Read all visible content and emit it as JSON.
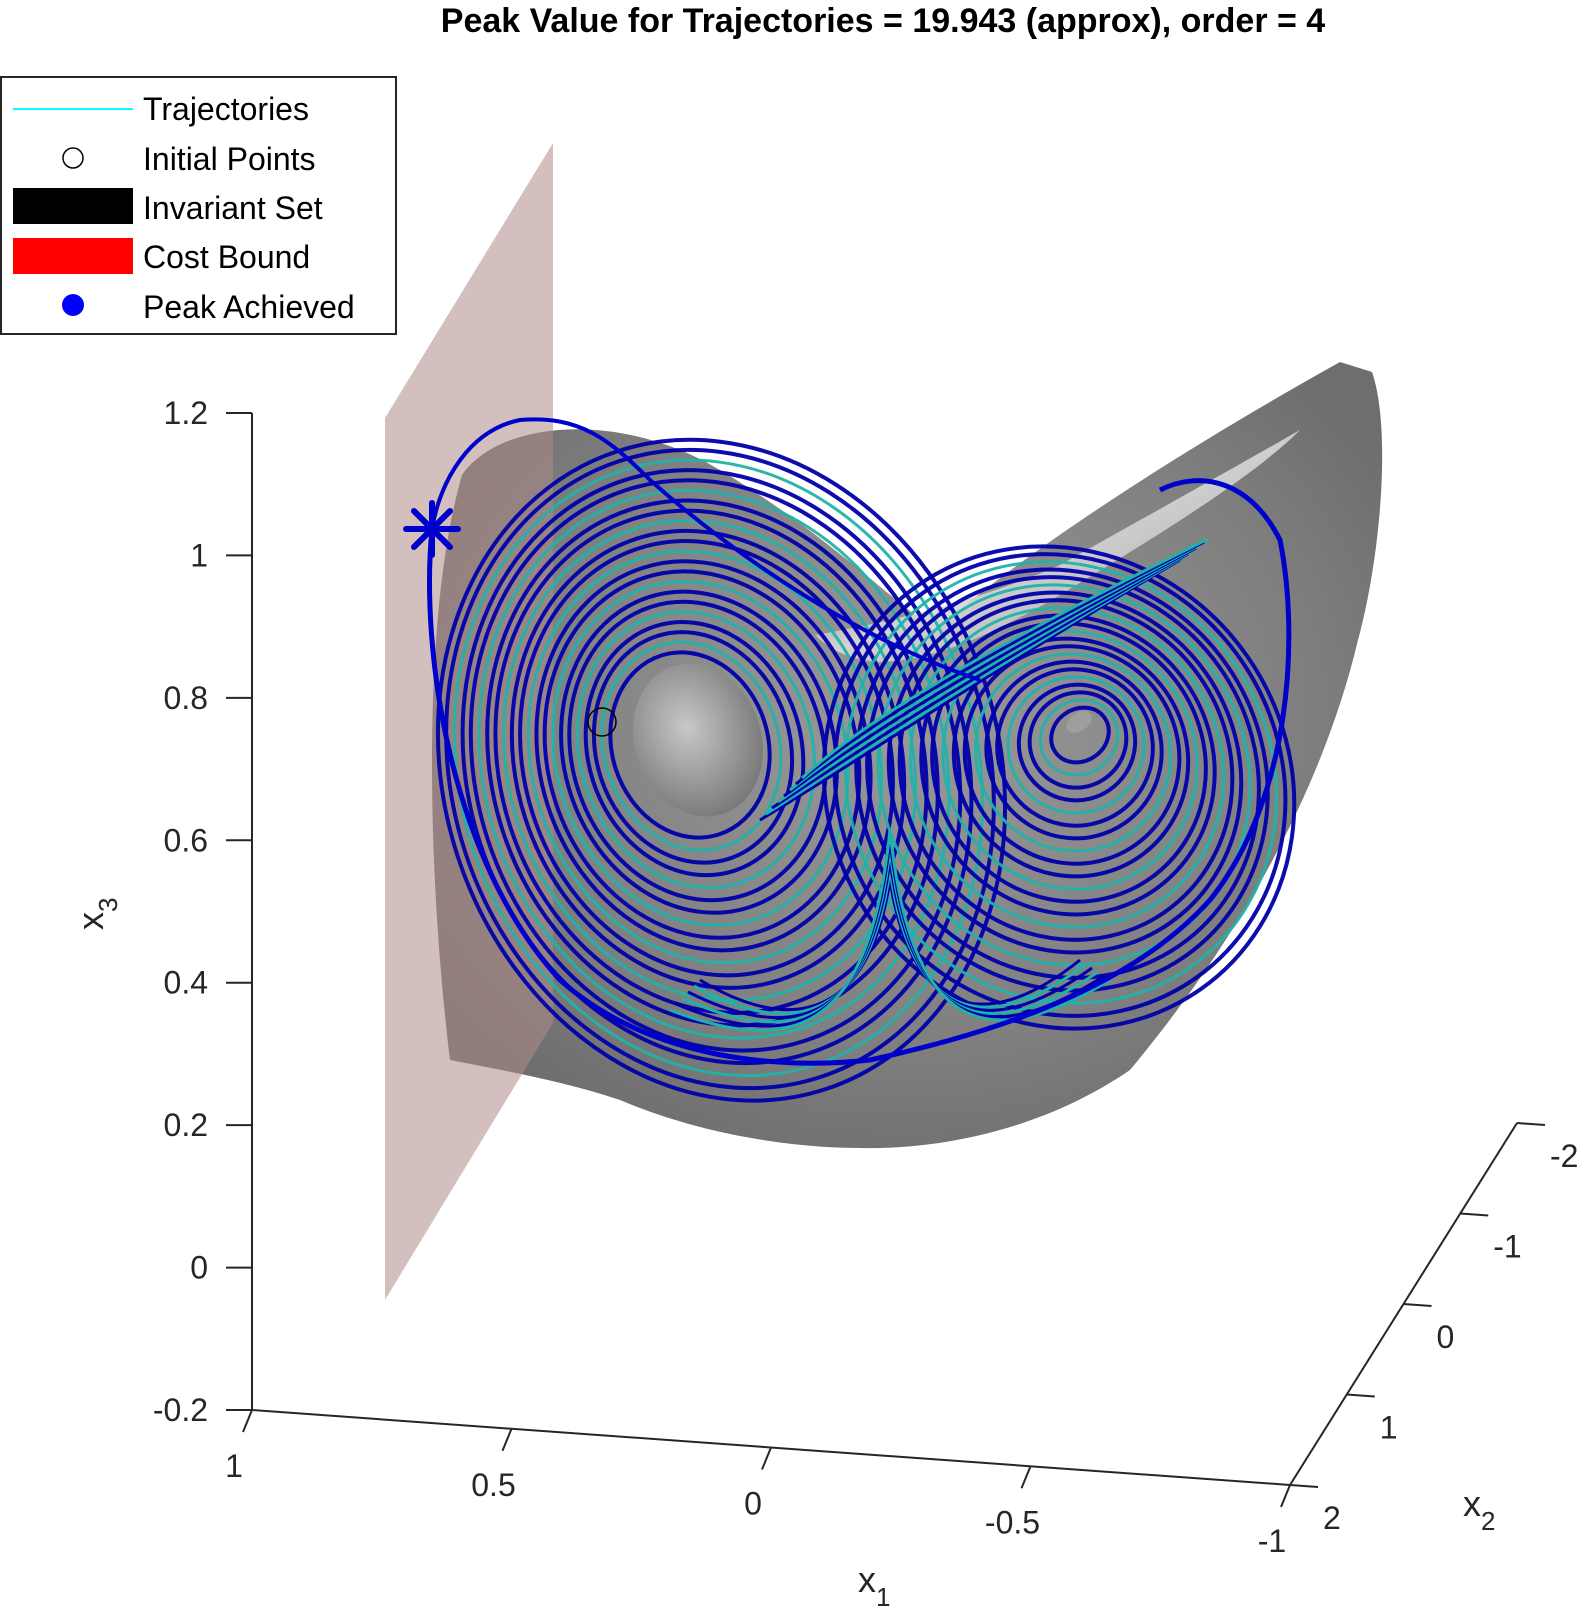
{
  "chart_data": {
    "type": "line",
    "title": "Peak Value for Trajectories = 19.943 (approx),  order = 4",
    "axes": {
      "x1": {
        "label": "x",
        "subscript": "1",
        "ticks": [
          "1",
          "0.5",
          "0",
          "-0.5",
          "-1"
        ],
        "range": [
          1,
          -1
        ]
      },
      "x2": {
        "label": "x",
        "subscript": "2",
        "ticks": [
          "2",
          "1",
          "0",
          "-1",
          "-2"
        ],
        "range": [
          2,
          -2
        ]
      },
      "x3": {
        "label": "x",
        "subscript": "3",
        "ticks": [
          "-0.2",
          "0",
          "0.2",
          "0.4",
          "0.6",
          "0.8",
          "1",
          "1.2"
        ],
        "range": [
          -0.2,
          1.2
        ]
      }
    },
    "legend": {
      "placement": "top-left",
      "entries": [
        {
          "label": "Trajectories",
          "color": "#00ffff",
          "style": "line"
        },
        {
          "label": "Initial Points",
          "color": "#000000",
          "style": "circle"
        },
        {
          "label": "Invariant Set",
          "color": "#000000",
          "style": "patch"
        },
        {
          "label": "Cost Bound",
          "color": "#ff0000",
          "style": "patch"
        },
        {
          "label": "Peak Achieved",
          "color": "#0000ff",
          "style": "dot"
        }
      ]
    },
    "peak_value": 19.943,
    "order": 4,
    "colors": {
      "trajectory_light": "#20b2aa",
      "trajectory_dark": "#0000aa",
      "invariant_set": "#7f7f7f",
      "cost_plane": "#b89a9a",
      "peak_marker": "#0000cc"
    }
  }
}
